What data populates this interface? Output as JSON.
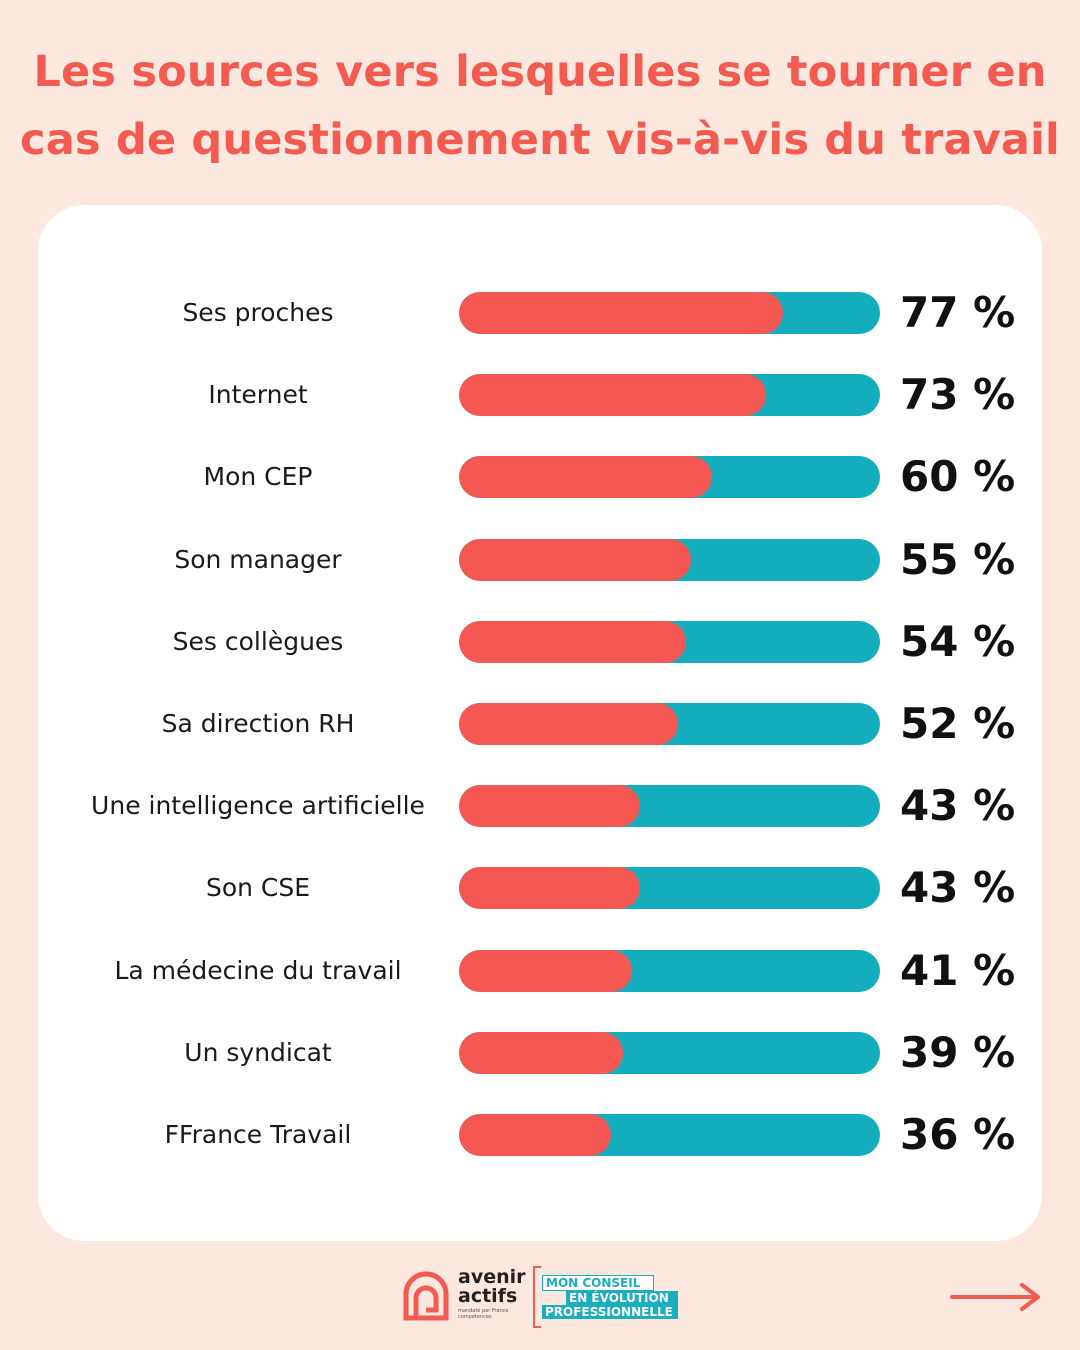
{
  "title": {
    "line1": "Les sources vers lesquelles se tourner en",
    "line2": "cas de questionnement vis-à-vis du travail"
  },
  "colors": {
    "background": "#fde8df",
    "title": "#f35b50",
    "bar_fill": "#f55852",
    "bar_track": "#14adbd",
    "card": "#ffffff"
  },
  "chart_data": {
    "type": "bar",
    "orientation": "horizontal",
    "ylim": [
      0,
      100
    ],
    "categories": [
      "Ses proches",
      "Internet",
      "Mon CEP",
      "Son manager",
      "Ses collègues",
      "Sa direction RH",
      "Une intelligence artificielle",
      "Son CSE",
      "La médecine du travail",
      "Un syndicat",
      "FFrance Travail"
    ],
    "values": [
      77,
      73,
      60,
      55,
      54,
      52,
      43,
      43,
      41,
      39,
      36
    ],
    "value_labels": [
      "77 %",
      "73 %",
      "60 %",
      "55 %",
      "54 %",
      "52 %",
      "43 %",
      "43 %",
      "41 %",
      "39 %",
      "36 %"
    ]
  },
  "footer": {
    "logo_line1": "avenir",
    "logo_line2": "actifs",
    "logo_sub": "mandaté par France compétences",
    "badge_line1": "MON CONSEIL",
    "badge_line2": "EN ÉVOLUTION",
    "badge_line3": "PROFESSIONNELLE",
    "next_icon": "arrow-right-icon"
  }
}
